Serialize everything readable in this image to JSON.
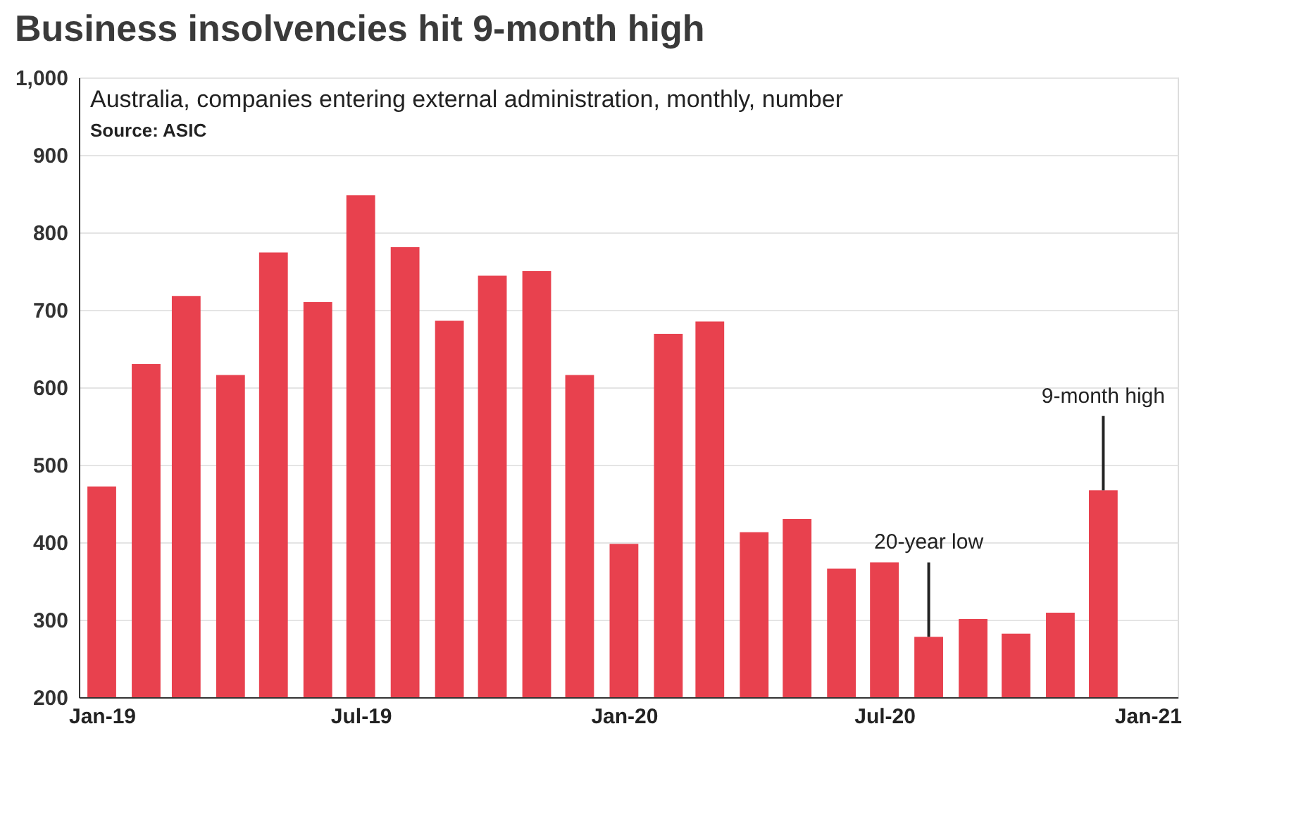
{
  "chart_data": {
    "type": "bar",
    "title": "Business insolvencies hit 9-month high",
    "subtitle": "Australia, companies entering external administration, monthly, number",
    "annotations": [
      "Source: ASIC",
      {
        "text": "20-year low",
        "x": "2020-08",
        "y": 278
      },
      {
        "text": "9-month high",
        "x": "2020-12",
        "y": 467
      }
    ],
    "x": [
      "2019-01",
      "2019-02",
      "2019-03",
      "2019-04",
      "2019-05",
      "2019-06",
      "2019-07",
      "2019-08",
      "2019-09",
      "2019-10",
      "2019-11",
      "2019-12",
      "2020-01",
      "2020-02",
      "2020-03",
      "2020-04",
      "2020-05",
      "2020-06",
      "2020-07",
      "2020-08",
      "2020-09",
      "2020-10",
      "2020-11",
      "2020-12"
    ],
    "values": [
      472,
      630,
      718,
      616,
      774,
      710,
      848,
      781,
      686,
      744,
      750,
      616,
      398,
      669,
      685,
      413,
      430,
      366,
      374,
      278,
      301,
      282,
      309,
      467
    ],
    "color": "#e8414e",
    "xlim": [
      "2018-12-16",
      "2021-01-22"
    ],
    "xticks": [
      {
        "value": "2019-01",
        "label": "Jan-19"
      },
      {
        "value": "2019-07",
        "label": "Jul-19"
      },
      {
        "value": "2020-01",
        "label": "Jan-20"
      },
      {
        "value": "2020-07",
        "label": "Jul-20"
      },
      {
        "value": "2021-01",
        "label": "Jan-21"
      }
    ],
    "ylim": [
      200,
      1000
    ],
    "yticks": [
      200,
      300,
      400,
      500,
      600,
      700,
      800,
      900,
      {
        "value": 1000,
        "label": "1,000"
      }
    ],
    "grid": "y"
  }
}
